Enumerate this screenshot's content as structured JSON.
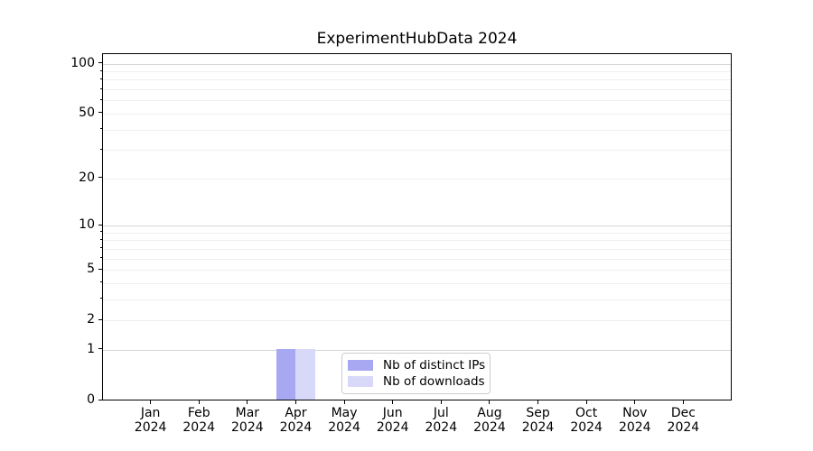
{
  "chart_data": {
    "type": "bar",
    "title": "ExperimentHubData 2024",
    "x_axis": {
      "categories": [
        "Jan",
        "Feb",
        "Mar",
        "Apr",
        "May",
        "Jun",
        "Jul",
        "Aug",
        "Sep",
        "Oct",
        "Nov",
        "Dec"
      ],
      "year": "2024"
    },
    "y_axis": {
      "scale": "log1p",
      "ticks": [
        0,
        1,
        2,
        5,
        10,
        20,
        50,
        100
      ],
      "minor_ticks": [
        3,
        4,
        6,
        7,
        8,
        9,
        30,
        40,
        60,
        70,
        80,
        90
      ],
      "range_top_value": 117
    },
    "series": [
      {
        "name": "Nb of distinct IPs",
        "color": "#a8a8f2",
        "values": [
          0,
          0,
          0,
          1,
          0,
          0,
          0,
          0,
          0,
          0,
          0,
          0
        ]
      },
      {
        "name": "Nb of downloads",
        "color": "#d8d8f8",
        "values": [
          0,
          0,
          0,
          1,
          0,
          0,
          0,
          0,
          0,
          0,
          0,
          0
        ]
      }
    ],
    "legend": {
      "position": "bottom-center"
    },
    "grid": true,
    "colors": {
      "background": "#ffffff",
      "spine": "#000000",
      "grid_major": "#d7d7d7",
      "grid_minor": "#efefef"
    }
  }
}
